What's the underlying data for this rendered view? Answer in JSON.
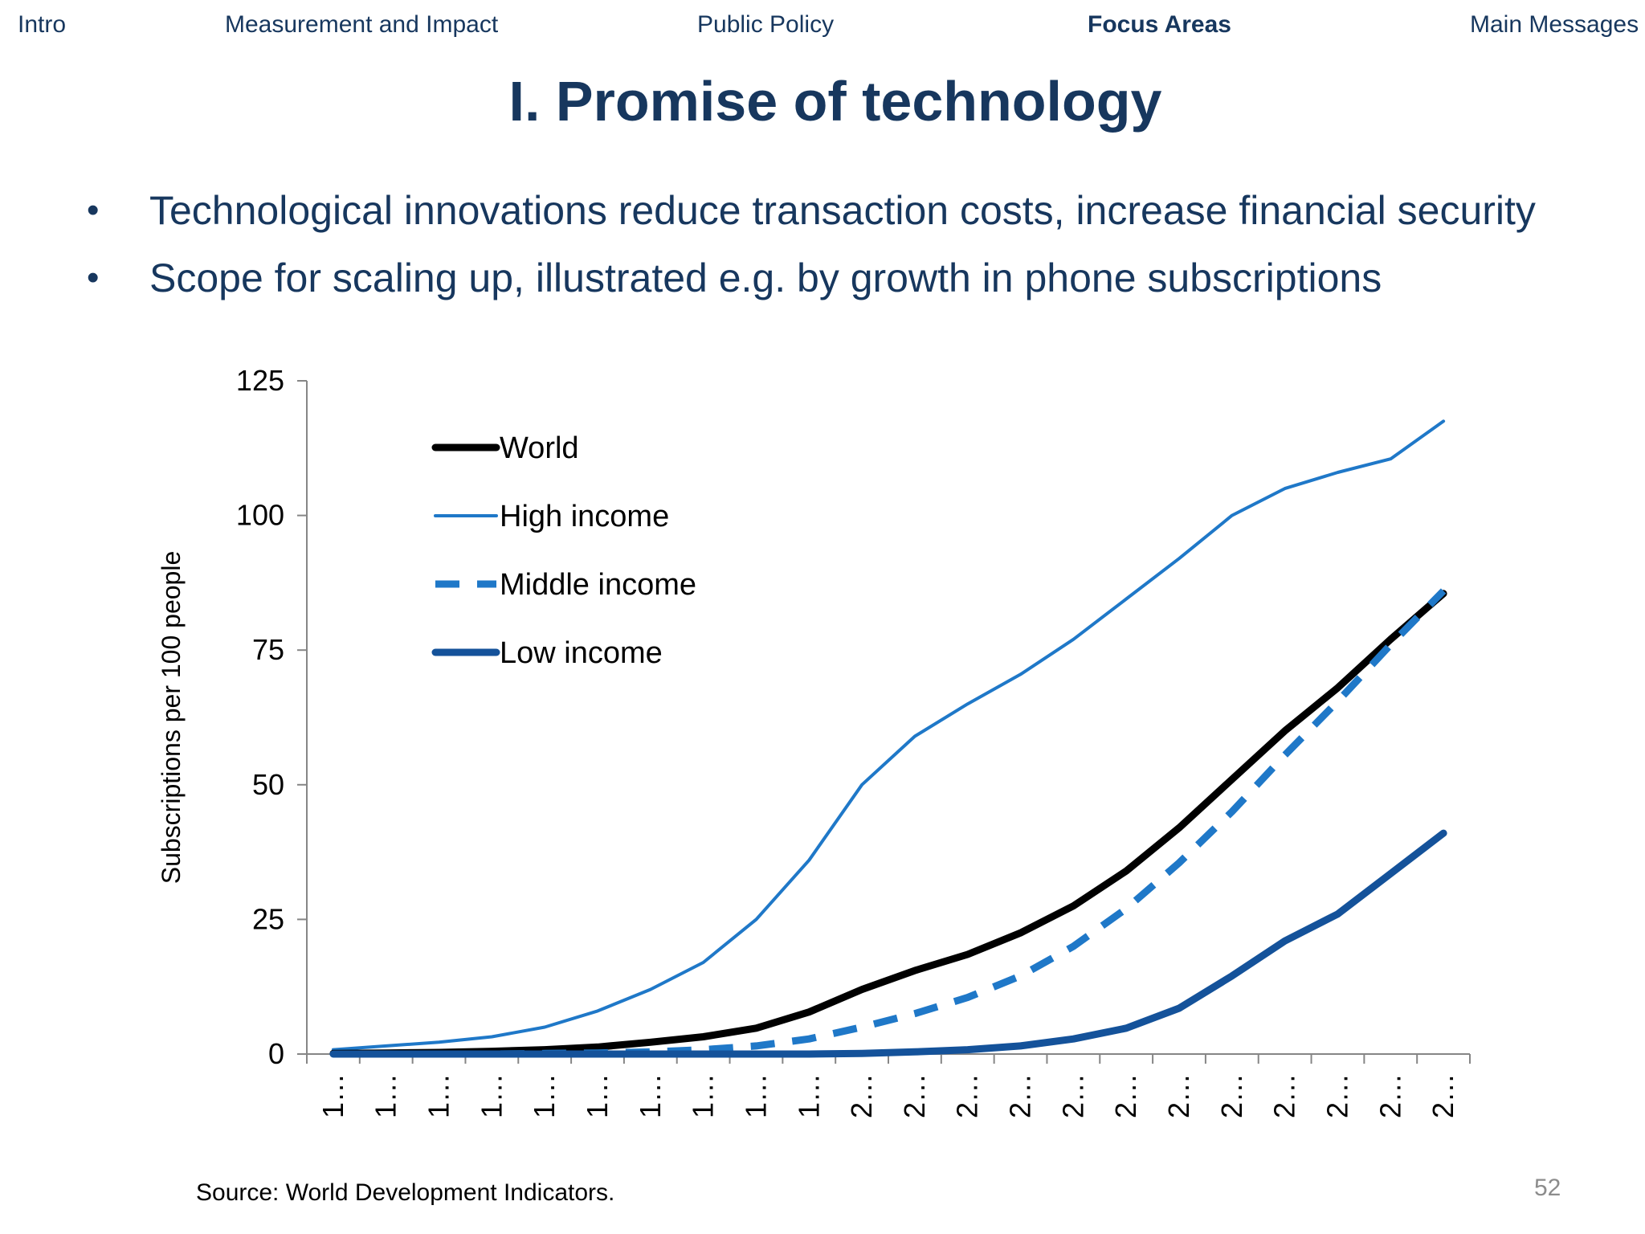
{
  "nav": {
    "items": [
      {
        "label": "Intro",
        "active": false
      },
      {
        "label": "Measurement and Impact",
        "active": false
      },
      {
        "label": "Public Policy",
        "active": false
      },
      {
        "label": "Focus Areas",
        "active": true
      },
      {
        "label": "Main Messages",
        "active": false
      }
    ]
  },
  "slide": {
    "title": "I. Promise of technology",
    "bullets": [
      "Technological innovations reduce transaction costs, increase financial security",
      "Scope for scaling up, illustrated e.g. by growth in phone subscriptions"
    ],
    "bullet_symbol": "•",
    "source": "Source: World Development Indicators.",
    "page_number": "52"
  },
  "chart_data": {
    "type": "line",
    "title": "",
    "xlabel": "",
    "ylabel": "Subscriptions per 100 people",
    "ylim": [
      0,
      125
    ],
    "yticks": [
      0,
      25,
      50,
      75,
      100,
      125
    ],
    "categories": [
      "1…",
      "1…",
      "1…",
      "1…",
      "1…",
      "1…",
      "1…",
      "1…",
      "1…",
      "1…",
      "2…",
      "2…",
      "2…",
      "2…",
      "2…",
      "2…",
      "2…",
      "2…",
      "2…",
      "2…",
      "2…",
      "2…"
    ],
    "legend_position": "top-left",
    "series": [
      {
        "name": "World",
        "color": "#000000",
        "style": "solid-thick",
        "values": [
          0.1,
          0.2,
          0.3,
          0.5,
          0.8,
          1.3,
          2.2,
          3.2,
          4.8,
          7.8,
          12,
          15.5,
          18.5,
          22.5,
          27.5,
          34,
          42,
          51,
          60,
          68,
          77,
          85.5
        ]
      },
      {
        "name": "High income",
        "color": "#1f78c8",
        "style": "solid-thin",
        "values": [
          0.8,
          1.5,
          2.2,
          3.2,
          5,
          8,
          12,
          17,
          25,
          36,
          50,
          59,
          65,
          70.5,
          77,
          84.5,
          92,
          100,
          105,
          108,
          110.5,
          117.5
        ]
      },
      {
        "name": "Middle income",
        "color": "#1f78c8",
        "style": "dashed",
        "values": [
          0,
          0,
          0,
          0,
          0.1,
          0.2,
          0.4,
          0.8,
          1.5,
          2.8,
          5,
          7.5,
          10.5,
          14.5,
          20,
          27,
          35.5,
          45,
          55.5,
          65.5,
          76,
          86
        ]
      },
      {
        "name": "Low income",
        "color": "#14529a",
        "style": "solid-thick",
        "values": [
          0,
          0,
          0,
          0,
          0,
          0,
          0,
          0,
          0,
          0,
          0.1,
          0.4,
          0.8,
          1.5,
          2.8,
          4.8,
          8.5,
          14.5,
          21,
          26,
          33.5,
          41
        ]
      }
    ]
  }
}
